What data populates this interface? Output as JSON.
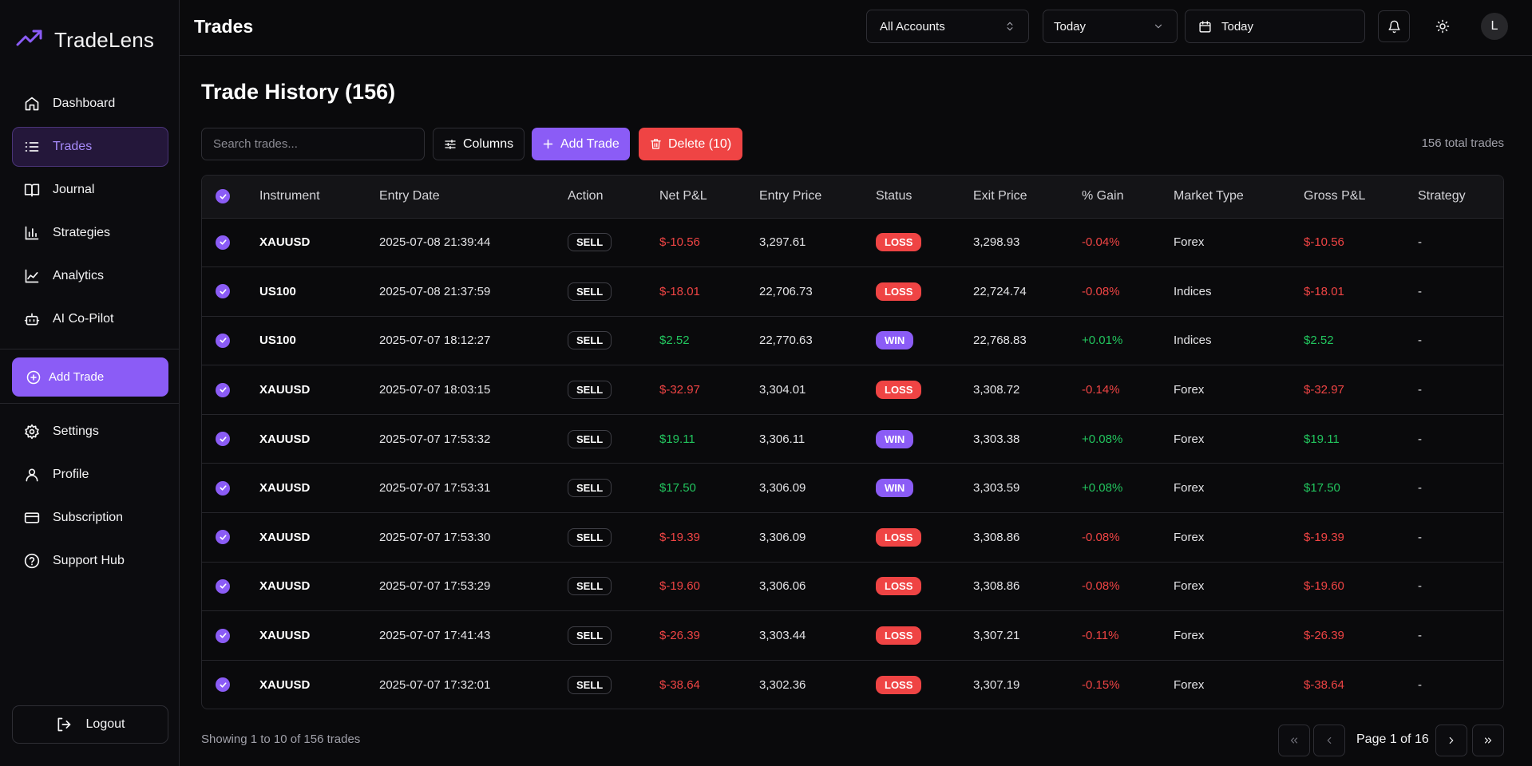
{
  "app": {
    "name": "TradeLens"
  },
  "sidebar": {
    "items": [
      {
        "label": "Dashboard",
        "icon": "home-icon"
      },
      {
        "label": "Trades",
        "icon": "list-icon",
        "active": true
      },
      {
        "label": "Journal",
        "icon": "book-icon"
      },
      {
        "label": "Strategies",
        "icon": "bar-chart-icon"
      },
      {
        "label": "Analytics",
        "icon": "line-chart-icon"
      },
      {
        "label": "AI Co-Pilot",
        "icon": "bot-icon"
      }
    ],
    "add_trade_label": "Add Trade",
    "secondary_items": [
      {
        "label": "Settings",
        "icon": "gear-icon"
      },
      {
        "label": "Profile",
        "icon": "user-icon"
      },
      {
        "label": "Subscription",
        "icon": "credit-card-icon"
      },
      {
        "label": "Support Hub",
        "icon": "help-circle-icon"
      }
    ],
    "logout_label": "Logout"
  },
  "header": {
    "title": "Trades",
    "account_select": "All Accounts",
    "range_select": "Today",
    "date_picker": "Today",
    "avatar_initial": "L"
  },
  "main": {
    "title": "Trade History (156)",
    "search_placeholder": "Search trades...",
    "columns_label": "Columns",
    "add_trade_label": "Add Trade",
    "delete_label": "Delete (10)",
    "total_trades": "156 total trades"
  },
  "table": {
    "columns": [
      "Instrument",
      "Entry Date",
      "Action",
      "Net P&L",
      "Entry Price",
      "Status",
      "Exit Price",
      "% Gain",
      "Market Type",
      "Gross P&L",
      "Strategy"
    ],
    "rows": [
      {
        "instrument": "XAUUSD",
        "entry_date": "2025-07-08 21:39:44",
        "action": "SELL",
        "net_pnl": "$-10.56",
        "entry_price": "3,297.61",
        "status": "LOSS",
        "exit_price": "3,298.93",
        "gain": "-0.04%",
        "market_type": "Forex",
        "gross_pnl": "$-10.56",
        "strategy": "-"
      },
      {
        "instrument": "US100",
        "entry_date": "2025-07-08 21:37:59",
        "action": "SELL",
        "net_pnl": "$-18.01",
        "entry_price": "22,706.73",
        "status": "LOSS",
        "exit_price": "22,724.74",
        "gain": "-0.08%",
        "market_type": "Indices",
        "gross_pnl": "$-18.01",
        "strategy": "-"
      },
      {
        "instrument": "US100",
        "entry_date": "2025-07-07 18:12:27",
        "action": "SELL",
        "net_pnl": "$2.52",
        "entry_price": "22,770.63",
        "status": "WIN",
        "exit_price": "22,768.83",
        "gain": "+0.01%",
        "market_type": "Indices",
        "gross_pnl": "$2.52",
        "strategy": "-"
      },
      {
        "instrument": "XAUUSD",
        "entry_date": "2025-07-07 18:03:15",
        "action": "SELL",
        "net_pnl": "$-32.97",
        "entry_price": "3,304.01",
        "status": "LOSS",
        "exit_price": "3,308.72",
        "gain": "-0.14%",
        "market_type": "Forex",
        "gross_pnl": "$-32.97",
        "strategy": "-"
      },
      {
        "instrument": "XAUUSD",
        "entry_date": "2025-07-07 17:53:32",
        "action": "SELL",
        "net_pnl": "$19.11",
        "entry_price": "3,306.11",
        "status": "WIN",
        "exit_price": "3,303.38",
        "gain": "+0.08%",
        "market_type": "Forex",
        "gross_pnl": "$19.11",
        "strategy": "-"
      },
      {
        "instrument": "XAUUSD",
        "entry_date": "2025-07-07 17:53:31",
        "action": "SELL",
        "net_pnl": "$17.50",
        "entry_price": "3,306.09",
        "status": "WIN",
        "exit_price": "3,303.59",
        "gain": "+0.08%",
        "market_type": "Forex",
        "gross_pnl": "$17.50",
        "strategy": "-"
      },
      {
        "instrument": "XAUUSD",
        "entry_date": "2025-07-07 17:53:30",
        "action": "SELL",
        "net_pnl": "$-19.39",
        "entry_price": "3,306.09",
        "status": "LOSS",
        "exit_price": "3,308.86",
        "gain": "-0.08%",
        "market_type": "Forex",
        "gross_pnl": "$-19.39",
        "strategy": "-"
      },
      {
        "instrument": "XAUUSD",
        "entry_date": "2025-07-07 17:53:29",
        "action": "SELL",
        "net_pnl": "$-19.60",
        "entry_price": "3,306.06",
        "status": "LOSS",
        "exit_price": "3,308.86",
        "gain": "-0.08%",
        "market_type": "Forex",
        "gross_pnl": "$-19.60",
        "strategy": "-"
      },
      {
        "instrument": "XAUUSD",
        "entry_date": "2025-07-07 17:41:43",
        "action": "SELL",
        "net_pnl": "$-26.39",
        "entry_price": "3,303.44",
        "status": "LOSS",
        "exit_price": "3,307.21",
        "gain": "-0.11%",
        "market_type": "Forex",
        "gross_pnl": "$-26.39",
        "strategy": "-"
      },
      {
        "instrument": "XAUUSD",
        "entry_date": "2025-07-07 17:32:01",
        "action": "SELL",
        "net_pnl": "$-38.64",
        "entry_price": "3,302.36",
        "status": "LOSS",
        "exit_price": "3,307.19",
        "gain": "-0.15%",
        "market_type": "Forex",
        "gross_pnl": "$-38.64",
        "strategy": "-"
      }
    ]
  },
  "footer": {
    "showing": "Showing 1 to 10 of 156 trades",
    "page_label": "Page 1 of 16"
  },
  "colors": {
    "accent": "#8b5cf6",
    "loss": "#ef4444",
    "win_text": "#22c55e",
    "background": "#0a0a0c"
  }
}
